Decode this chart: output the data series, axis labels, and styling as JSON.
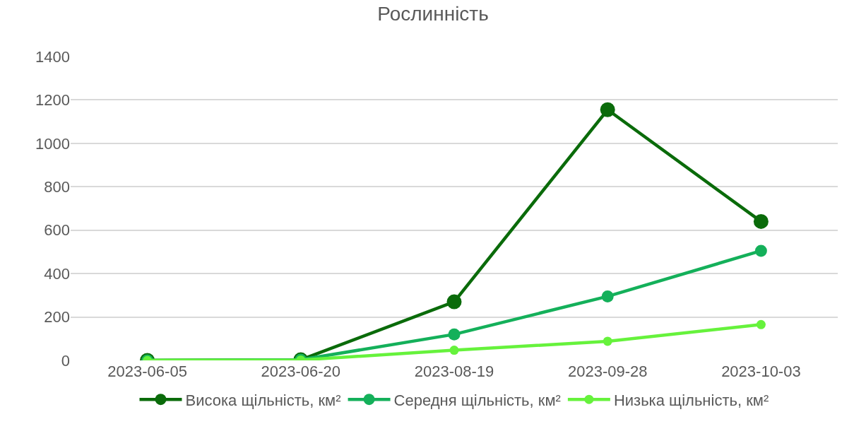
{
  "chart_data": {
    "type": "line",
    "title": "Рослинність",
    "categories": [
      "2023-06-05",
      "2023-06-20",
      "2023-08-19",
      "2023-09-28",
      "2023-10-03"
    ],
    "series": [
      {
        "name": "Висока щільність, км²",
        "color": "#0a6b0a",
        "values": [
          0,
          3,
          270,
          1155,
          640
        ]
      },
      {
        "name": "Середня щільність, км²",
        "color": "#14b05a",
        "values": [
          0,
          3,
          120,
          295,
          505
        ]
      },
      {
        "name": "Низька щільність, км²",
        "color": "#66f23c",
        "values": [
          0,
          2,
          47,
          88,
          165
        ]
      }
    ],
    "ylim": [
      0,
      1400
    ],
    "yticks": [
      0,
      200,
      400,
      600,
      800,
      1000,
      1200,
      1400
    ],
    "grid": "y",
    "legend": "bottom",
    "marker": "circle",
    "line_style": "solid"
  }
}
